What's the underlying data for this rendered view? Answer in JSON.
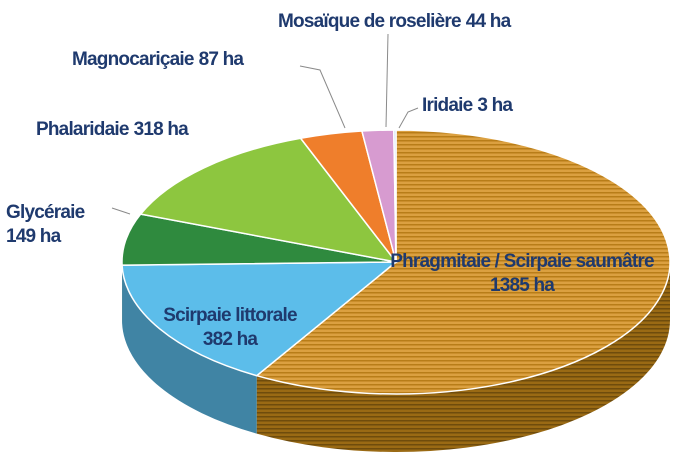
{
  "chart_data": {
    "type": "pie3d",
    "categories": [
      "Phragmitaie / Scirpaie saumâtre",
      "Scirpaie littorale",
      "Glycéraie",
      "Phalaridaie",
      "Magnocariçaie",
      "Mosaïque de roselière",
      "Iridaie"
    ],
    "values": [
      1385,
      382,
      149,
      318,
      87,
      44,
      3
    ],
    "value_labels": [
      "1385 ha",
      "382 ha",
      "149 ha",
      "318 ha",
      "87 ha",
      "44 ha",
      "3 ha"
    ],
    "colors": [
      "#d8992b",
      "#5cbdea",
      "#2f8a3e",
      "#8dc63f",
      "#ef7e2b",
      "#d79bd0",
      "#b9d3ec"
    ]
  }
}
